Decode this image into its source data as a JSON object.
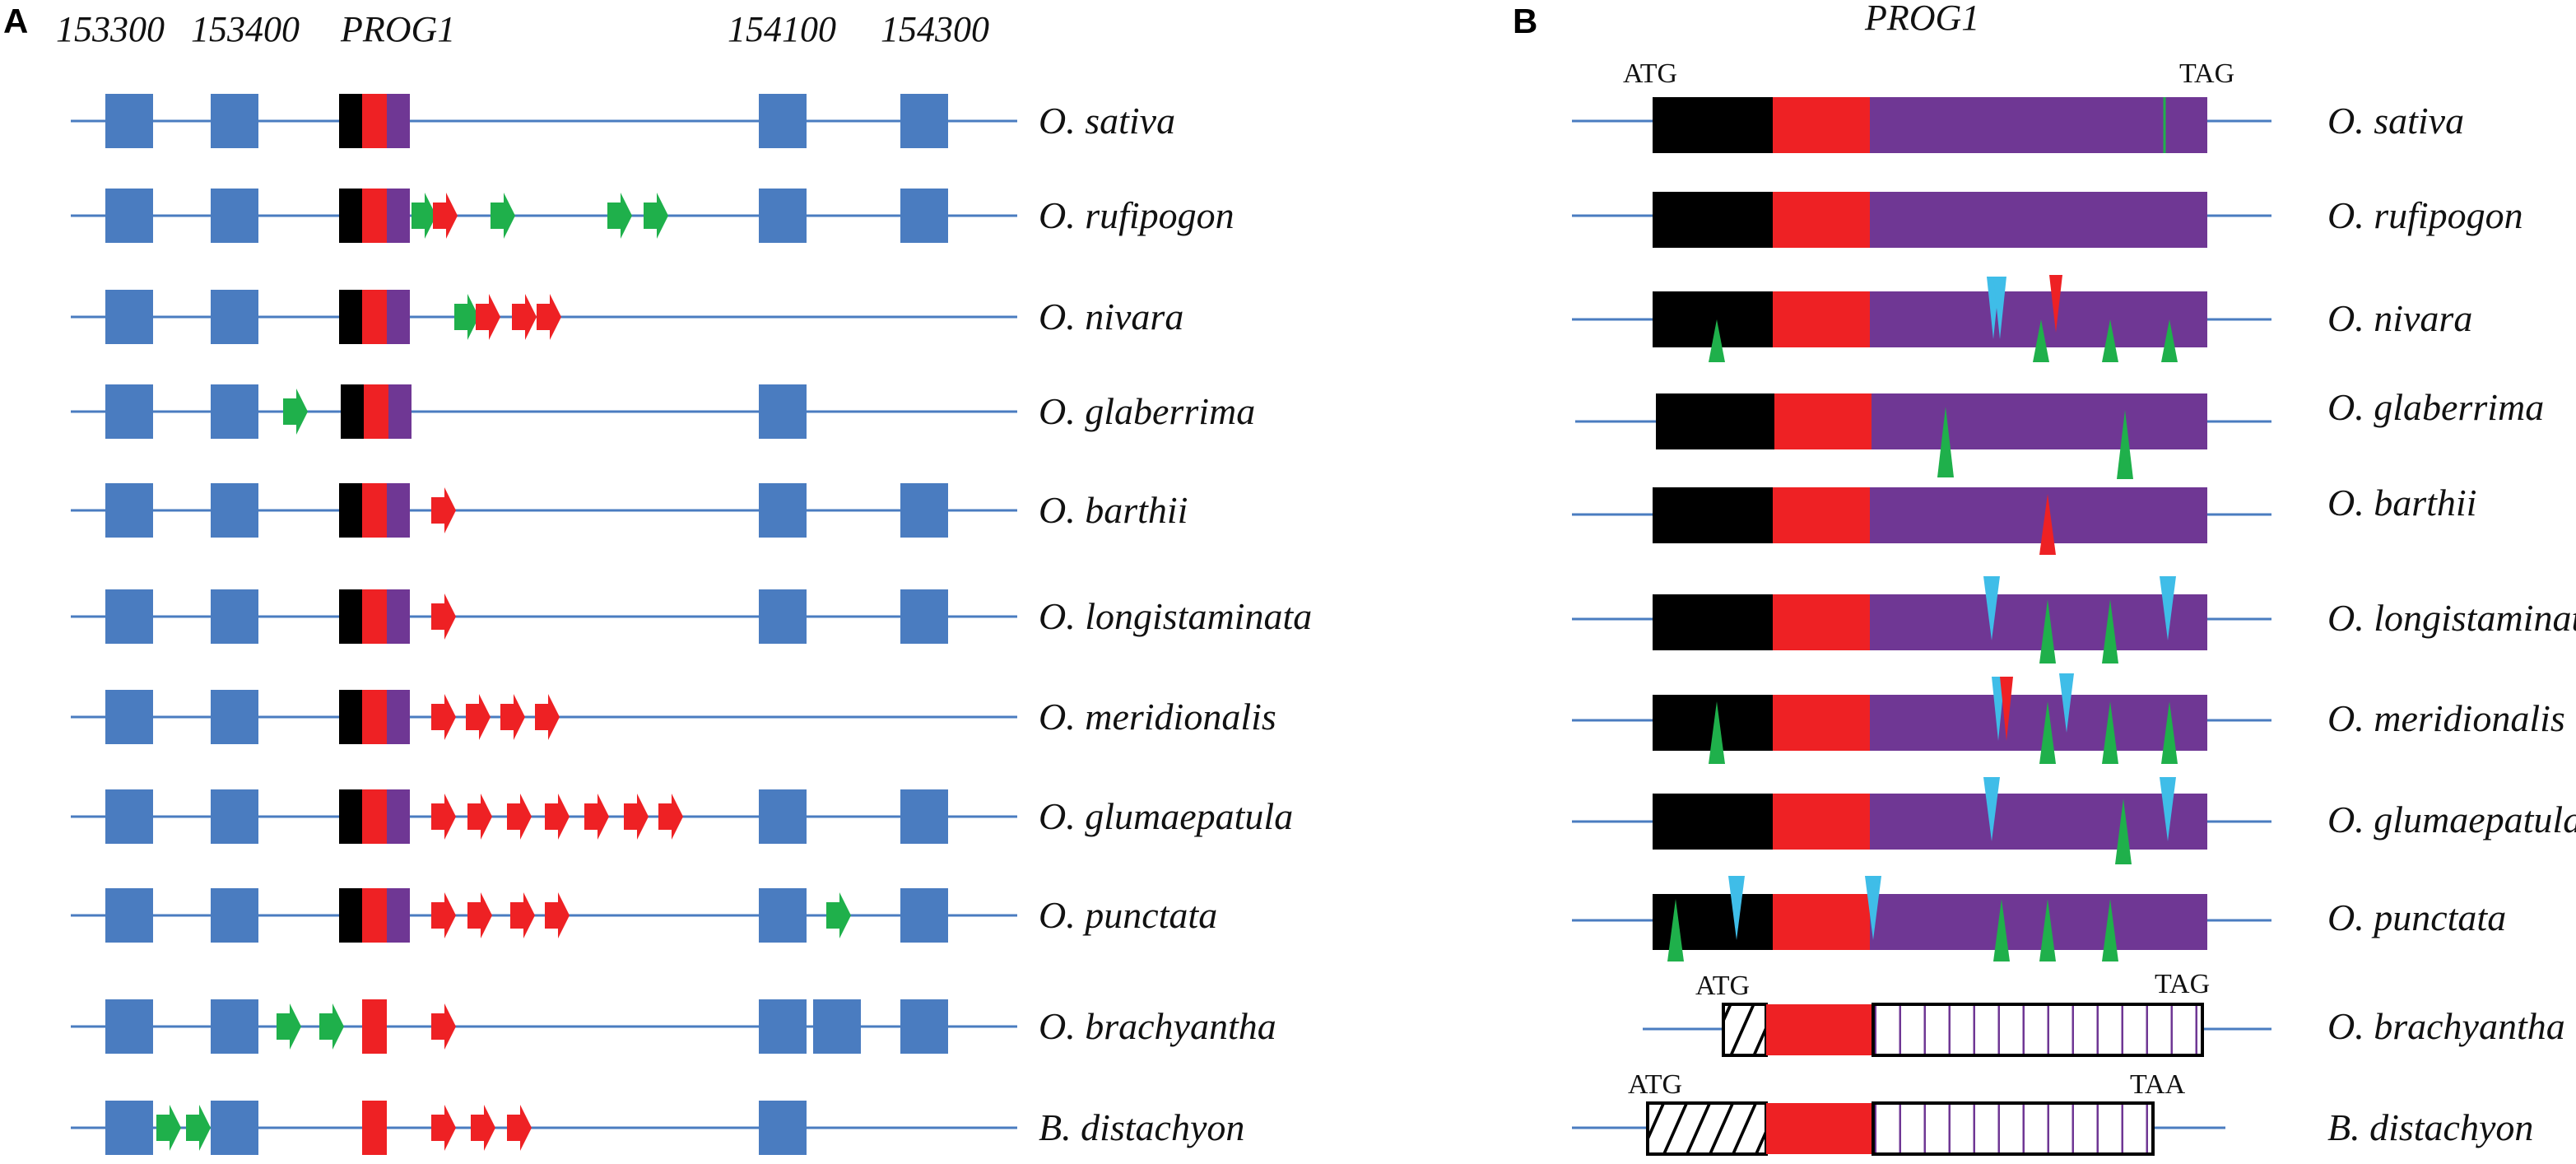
{
  "panel_a": {
    "letter": "A",
    "coord_labels": [
      "153300",
      "153400",
      "PROG1",
      "154100",
      "154300"
    ],
    "rows": [
      {
        "species": "O. sativa",
        "blocks": [
          "b1",
          "b2",
          "prog",
          "b3",
          "b4"
        ],
        "arrows": []
      },
      {
        "species": "O. rufipogon",
        "blocks": [
          "b1",
          "b2",
          "prog",
          "b3",
          "b4"
        ],
        "arrows": [
          "green",
          "red",
          "green",
          "green",
          "green"
        ]
      },
      {
        "species": "O. nivara",
        "blocks": [
          "b1",
          "b2",
          "prog"
        ],
        "arrows": [
          "green",
          "red",
          "red",
          "red"
        ]
      },
      {
        "species": "O. glaberrima",
        "blocks": [
          "b1",
          "b2",
          "prog",
          "b3"
        ],
        "arrows": [
          "green"
        ]
      },
      {
        "species": "O. barthii",
        "blocks": [
          "b1",
          "b2",
          "prog",
          "b3",
          "b4"
        ],
        "arrows": [
          "red"
        ]
      },
      {
        "species": "O. longistaminata",
        "blocks": [
          "b1",
          "b2",
          "prog",
          "b3",
          "b4"
        ],
        "arrows": [
          "red"
        ]
      },
      {
        "species": "O. meridionalis",
        "blocks": [
          "b1",
          "b2",
          "prog"
        ],
        "arrows": [
          "red",
          "red",
          "red",
          "red"
        ]
      },
      {
        "species": "O. glumaepatula",
        "blocks": [
          "b1",
          "b2",
          "prog",
          "b3",
          "b4"
        ],
        "arrows": [
          "red",
          "red",
          "red",
          "red",
          "red",
          "red",
          "red"
        ]
      },
      {
        "species": "O. punctata",
        "blocks": [
          "b1",
          "b2",
          "prog",
          "b3",
          "b4"
        ],
        "arrows": [
          "red",
          "red",
          "red",
          "red",
          "green"
        ]
      },
      {
        "species": "O. brachyantha",
        "blocks": [
          "b1",
          "b2",
          "prog-red",
          "b3",
          "b3b",
          "b4"
        ],
        "arrows": [
          "green",
          "green",
          "red"
        ]
      },
      {
        "species": "B. distachyon",
        "blocks": [
          "b1",
          "b2",
          "prog-red",
          "b3"
        ],
        "arrows": [
          "green",
          "green",
          "red",
          "red",
          "red"
        ]
      }
    ]
  },
  "panel_b": {
    "letter": "B",
    "gene_title": "PROG1",
    "start_codon": "ATG",
    "stop_codon_tag": "TAG",
    "stop_codon_taa": "TAA",
    "rows": [
      {
        "species": "O. sativa",
        "style": "solid"
      },
      {
        "species": "O. rufipogon",
        "style": "solid"
      },
      {
        "species": "O. nivara",
        "style": "solid"
      },
      {
        "species": "O. glaberrima",
        "style": "solid"
      },
      {
        "species": "O. barthii",
        "style": "solid"
      },
      {
        "species": "O. longistaminata",
        "style": "solid"
      },
      {
        "species": "O. meridionalis",
        "style": "solid"
      },
      {
        "species": "O. glumaepatula",
        "style": "solid"
      },
      {
        "species": "O. punctata",
        "style": "solid"
      },
      {
        "species": "O. brachyantha",
        "style": "hatched"
      },
      {
        "species": "B. distachyon",
        "style": "hatched"
      }
    ]
  },
  "colors": {
    "line": "#4a7cc0",
    "block": "#4a7cc0",
    "black": "#000000",
    "red": "#ee2124",
    "purple": "#6f3794",
    "green": "#1fb04b",
    "cyan": "#3fbde8"
  }
}
